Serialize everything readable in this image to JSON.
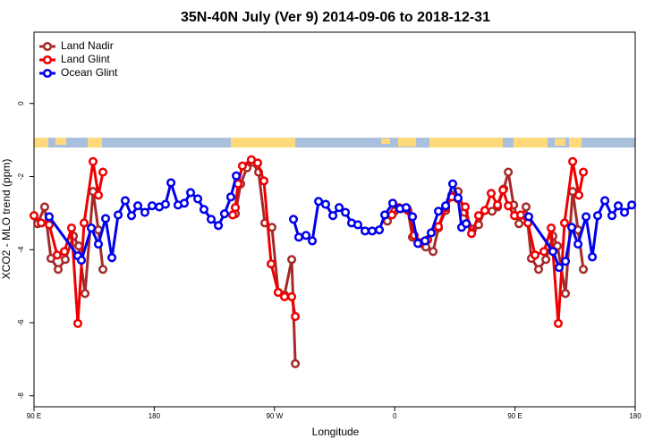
{
  "chart_data": {
    "type": "line",
    "title": "35N-40N July (Ver 9)   2014-09-06 to 2018-12-31",
    "x_label": "Longitude",
    "y_label": "XCO2 - MLO trend (ppm)",
    "xlim": [
      90,
      540
    ],
    "ylim": [
      -8.3,
      1.95
    ],
    "xticks": [
      {
        "value": 90,
        "label": "90 E"
      },
      {
        "value": 180,
        "label": "180"
      },
      {
        "value": 270,
        "label": "90 W"
      },
      {
        "value": 360,
        "label": "0"
      },
      {
        "value": 450,
        "label": "90 E"
      },
      {
        "value": 540,
        "label": "180"
      }
    ],
    "yticks": [
      -8,
      -6,
      -4,
      -2,
      0
    ],
    "grid": false,
    "legend": "top-left",
    "series": [
      {
        "name": "Land Nadir",
        "color": "#a52a2a",
        "x": [
          92.7,
          98.0,
          102.7,
          108.1,
          113.4,
          119.5,
          123.5,
          128.2,
          134.2,
          138.2,
          141.6,
          null,
          240.7,
          244.7,
          249.4,
          253.4,
          258.1,
          262.8,
          268.1,
          272.8,
          277.5,
          282.9,
          285.6,
          null,
          354.5,
          359.9,
          365.2,
          369.9,
          373.3,
          378.0,
          383.3,
          388.7,
          392.7,
          398.1,
          402.7,
          407.4,
          412.1,
          418.2,
          422.8,
          427.5,
          432.9,
          436.9,
          441.6,
          445.0,
          449.0,
          453.0,
          458.3,
          462.3,
          467.7,
          473.1,
          478.4,
          481.8,
          487.8,
          493.2,
          497.2,
          501.2
        ],
        "values": [
          -3.29,
          -2.83,
          -4.24,
          -4.54,
          -4.27,
          -3.63,
          -3.9,
          -5.2,
          -2.41,
          -3.46,
          -4.54,
          null,
          -3.02,
          -2.2,
          -1.76,
          -1.61,
          -1.88,
          -3.27,
          -3.39,
          -5.17,
          -5.24,
          -4.27,
          -7.12,
          null,
          -3.22,
          -2.95,
          -2.88,
          -2.93,
          -3.66,
          -3.8,
          -3.93,
          -4.05,
          -3.41,
          -2.93,
          -2.51,
          -2.41,
          -2.98,
          -3.44,
          -3.32,
          -2.93,
          -2.95,
          -2.83,
          -2.34,
          -1.88,
          -2.78,
          -3.29,
          -2.83,
          -4.24,
          -4.54,
          -4.27,
          -3.63,
          -3.9,
          -5.2,
          -2.41,
          -3.46,
          -4.54
        ]
      },
      {
        "name": "Land Glint",
        "color": "#ee0000",
        "x": [
          90.0,
          95.4,
          101.4,
          107.4,
          112.8,
          118.1,
          122.8,
          127.5,
          134.2,
          138.2,
          141.6,
          null,
          238.7,
          240.7,
          242.7,
          246.0,
          252.7,
          257.4,
          262.1,
          267.5,
          272.8,
          277.5,
          282.9,
          285.6,
          null,
          357.9,
          363.2,
          369.3,
          374.6,
          379.3,
          384.7,
          392.7,
          398.1,
          402.7,
          407.4,
          412.8,
          417.5,
          422.8,
          427.5,
          432.2,
          436.9,
          441.0,
          445.0,
          449.6,
          454.3,
          459.7,
          465.0,
          471.7,
          477.1,
          482.4,
          487.1,
          493.2,
          497.8,
          501.2
        ],
        "values": [
          -3.07,
          -3.27,
          -3.32,
          -4.15,
          -4.05,
          -3.41,
          -6.02,
          -3.27,
          -1.59,
          -2.51,
          -1.88,
          null,
          -3.05,
          -2.85,
          -2.2,
          -1.71,
          -1.54,
          -1.63,
          -2.12,
          -4.39,
          -5.17,
          -5.29,
          -5.29,
          -5.83,
          null,
          -3.05,
          -2.85,
          -2.88,
          -3.61,
          -3.83,
          -3.73,
          -3.37,
          -2.85,
          -2.56,
          -2.61,
          -2.83,
          -3.56,
          -3.07,
          -2.93,
          -2.46,
          -2.78,
          -2.37,
          -2.8,
          -3.07,
          -3.05,
          -3.27,
          -4.15,
          -4.05,
          -3.41,
          -6.02,
          -3.27,
          -1.59,
          -2.51,
          -1.88
        ]
      },
      {
        "name": "Ocean Glint",
        "color": "#0000ee",
        "x": [
          101.4,
          122.8,
          125.5,
          132.9,
          138.2,
          143.6,
          148.3,
          153.0,
          158.3,
          163.0,
          167.7,
          173.0,
          178.4,
          183.8,
          188.4,
          192.5,
          197.8,
          202.5,
          207.2,
          212.6,
          217.2,
          222.6,
          228.0,
          232.6,
          237.3,
          241.4,
          null,
          284.2,
          288.2,
          293.6,
          298.3,
          303.0,
          308.3,
          313.7,
          318.4,
          323.1,
          327.7,
          332.4,
          337.8,
          343.1,
          348.5,
          352.5,
          358.5,
          363.9,
          368.6,
          373.3,
          377.3,
          382.7,
          387.3,
          392.7,
          398.1,
          403.4,
          407.4,
          410.1,
          413.5,
          null,
          460.3,
          478.4,
          483.1,
          487.8,
          492.5,
          497.2,
          503.2,
          507.9,
          511.9,
          517.3,
          522.6,
          527.3,
          532.0,
          537.4
        ],
        "values": [
          -3.1,
          -4.17,
          -4.29,
          -3.41,
          -3.85,
          -3.15,
          -4.22,
          -3.05,
          -2.66,
          -3.07,
          -2.8,
          -2.98,
          -2.8,
          -2.83,
          -2.76,
          -2.17,
          -2.78,
          -2.73,
          -2.44,
          -2.61,
          -2.9,
          -3.17,
          -3.34,
          -3.02,
          -2.56,
          -1.98,
          null,
          -3.17,
          -3.66,
          -3.61,
          -3.76,
          -2.68,
          -2.76,
          -3.07,
          -2.85,
          -2.98,
          -3.27,
          -3.32,
          -3.49,
          -3.49,
          -3.46,
          -3.05,
          -2.73,
          -2.88,
          -2.85,
          -3.1,
          -3.83,
          -3.76,
          -3.54,
          -2.95,
          -2.8,
          -2.2,
          -2.59,
          -3.39,
          -3.29,
          null,
          -3.1,
          -4.05,
          -4.49,
          -4.32,
          -3.39,
          -3.85,
          -3.1,
          -4.2,
          -3.07,
          -2.66,
          -3.07,
          -2.8,
          -2.98,
          -2.78
        ]
      }
    ]
  }
}
